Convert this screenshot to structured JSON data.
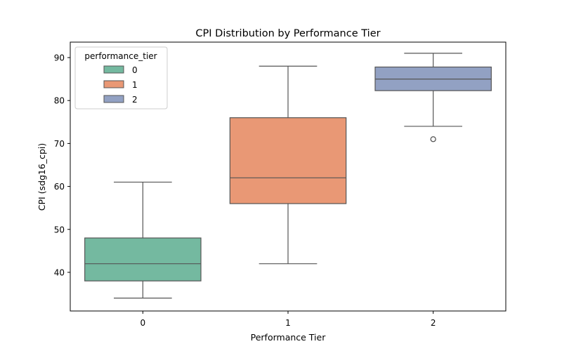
{
  "chart_data": {
    "type": "box",
    "title": "CPI Distribution by Performance Tier",
    "xlabel": "Performance Tier",
    "ylabel": "CPI (sdg16_cpi)",
    "ylim": [
      31.0,
      93.6
    ],
    "yticks": [
      40,
      50,
      60,
      70,
      80,
      90
    ],
    "categories": [
      "0",
      "1",
      "2"
    ],
    "grid": false,
    "legend": {
      "title": "performance_tier",
      "placement": "top-left",
      "entries": [
        "0",
        "1",
        "2"
      ]
    },
    "series": [
      {
        "category": "0",
        "color": "#74b9a0",
        "whisker_low": 34,
        "q1": 38,
        "median": 42,
        "q3": 48,
        "whisker_high": 61,
        "outliers": []
      },
      {
        "category": "1",
        "color": "#e99875",
        "whisker_low": 42,
        "q1": 56,
        "median": 62,
        "q3": 76,
        "whisker_high": 88,
        "outliers": []
      },
      {
        "category": "2",
        "color": "#92a1c3",
        "whisker_low": 74,
        "q1": 82.3,
        "median": 85,
        "q3": 87.8,
        "whisker_high": 91,
        "outliers": [
          71
        ]
      }
    ]
  }
}
